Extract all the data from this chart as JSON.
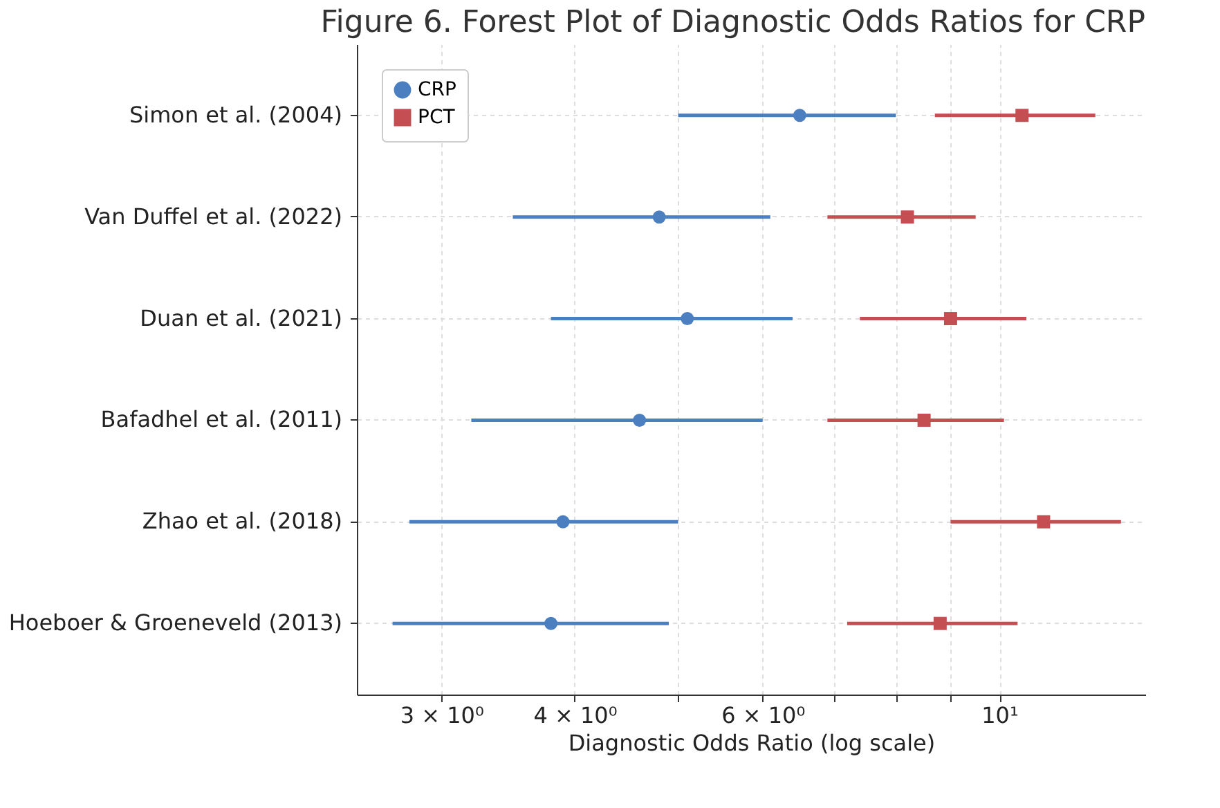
{
  "chart_data": {
    "type": "scatter",
    "orientation": "horizontal",
    "title": "Figure 6. Forest Plot of Diagnostic Odds Ratios for CRP",
    "xlabel": "Diagnostic Odds Ratio (log scale)",
    "categories": [
      "Simon et al. (2004)",
      "Van Duffel et al. (2022)",
      "Duan et al. (2021)",
      "Bafadhel et al. (2011)",
      "Zhao et al. (2018)",
      "Hoeboer & Groeneveld (2013)"
    ],
    "series": [
      {
        "name": "CRP",
        "color": "#4c7fc0",
        "marker": "circle",
        "values": [
          6.5,
          4.8,
          5.1,
          4.6,
          3.9,
          3.8
        ],
        "errors": [
          [
            5.0,
            8.0
          ],
          [
            3.5,
            6.1
          ],
          [
            3.8,
            6.4
          ],
          [
            3.2,
            6.0
          ],
          [
            2.8,
            5.0
          ],
          [
            2.7,
            4.9
          ]
        ]
      },
      {
        "name": "PCT",
        "color": "#c44e52",
        "marker": "square",
        "values": [
          10.5,
          8.2,
          9.0,
          8.5,
          11.0,
          8.8
        ],
        "errors": [
          [
            8.7,
            12.3
          ],
          [
            6.9,
            9.5
          ],
          [
            7.4,
            10.6
          ],
          [
            6.9,
            10.1
          ],
          [
            9.0,
            13.0
          ],
          [
            7.2,
            10.4
          ]
        ]
      }
    ],
    "log": "x",
    "xlim": [
      2.5,
      13.7
    ],
    "xticks": [
      {
        "value": 3,
        "label": "3 × 10⁰"
      },
      {
        "value": 4,
        "label": "4 × 10⁰"
      },
      {
        "value": 5,
        "label": null
      },
      {
        "value": 6,
        "label": "6 × 10⁰"
      },
      {
        "value": 7,
        "label": null
      },
      {
        "value": 8,
        "label": null
      },
      {
        "value": 9,
        "label": null
      },
      {
        "value": 10,
        "label": "10¹"
      }
    ],
    "grid": true,
    "legend": "top left"
  }
}
